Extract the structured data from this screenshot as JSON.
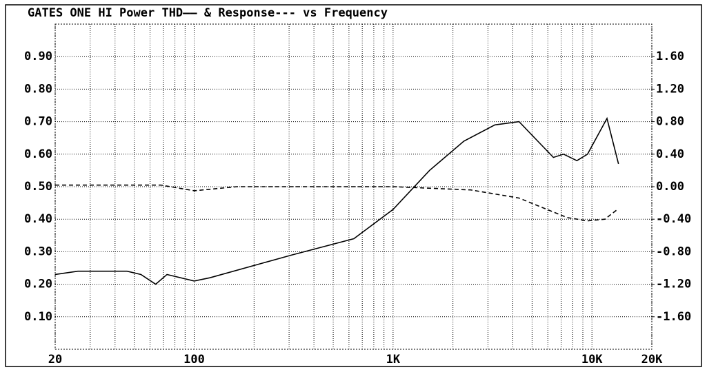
{
  "chart_data": {
    "type": "line",
    "title": "GATES ONE HI Power THD—— & Response--- vs Frequency",
    "xlog": true,
    "xlim": [
      20,
      20000
    ],
    "xticks": [
      20,
      100,
      {
        "value": 1000,
        "label": "1K"
      },
      {
        "value": 10000,
        "label": "10K"
      },
      {
        "value": 20000,
        "label": "20K"
      }
    ],
    "xminor": [
      30,
      40,
      50,
      60,
      70,
      80,
      90,
      200,
      300,
      400,
      500,
      600,
      700,
      800,
      900,
      2000,
      3000,
      4000,
      5000,
      6000,
      7000,
      8000,
      9000
    ],
    "ylim": [
      0,
      1.0
    ],
    "yticks": [
      {
        "value": 0.1,
        "label": "0.10"
      },
      {
        "value": 0.2,
        "label": "0.20"
      },
      {
        "value": 0.3,
        "label": "0.30"
      },
      {
        "value": 0.4,
        "label": "0.40"
      },
      {
        "value": 0.5,
        "label": "0.50"
      },
      {
        "value": 0.6,
        "label": "0.60"
      },
      {
        "value": 0.7,
        "label": "0.70"
      },
      {
        "value": 0.8,
        "label": "0.80"
      },
      {
        "value": 0.9,
        "label": "0.90"
      }
    ],
    "y2lim": [
      -2.0,
      2.0
    ],
    "y2ticks": [
      {
        "value": -1.6,
        "label": "-1.60"
      },
      {
        "value": -1.2,
        "label": "-1.20"
      },
      {
        "value": -0.8,
        "label": "-0.80"
      },
      {
        "value": -0.4,
        "label": "-0.40"
      },
      {
        "value": 0,
        "label": "0.00"
      },
      {
        "value": 0.4,
        "label": "0.40"
      },
      {
        "value": 0.8,
        "label": "0.80"
      },
      {
        "value": 1.2,
        "label": "1.20"
      },
      {
        "value": 1.6,
        "label": "1.60"
      }
    ],
    "grid": true,
    "series": [
      {
        "name": "THD",
        "color": "#000000",
        "dash": false,
        "x": [
          20,
          26,
          46,
          54,
          64,
          73,
          100,
          120,
          310,
          635,
          1000,
          1525,
          2270,
          3250,
          4300,
          6400,
          7200,
          8400,
          9500,
          11900,
          13600
        ],
        "values": [
          0.23,
          0.24,
          0.24,
          0.23,
          0.2,
          0.23,
          0.21,
          0.22,
          0.29,
          0.34,
          0.43,
          0.55,
          0.64,
          0.69,
          0.7,
          0.59,
          0.6,
          0.58,
          0.6,
          0.71,
          0.57
        ]
      },
      {
        "name": "Response",
        "color": "#000000",
        "dash": true,
        "axis": "y2",
        "x": [
          20,
          68,
          100,
          164,
          1000,
          2460,
          4300,
          7500,
          9500,
          11600,
          13600
        ],
        "values": [
          0.02,
          0.02,
          -0.05,
          0,
          0,
          -0.04,
          -0.14,
          -0.38,
          -0.42,
          -0.4,
          -0.27
        ]
      }
    ]
  }
}
